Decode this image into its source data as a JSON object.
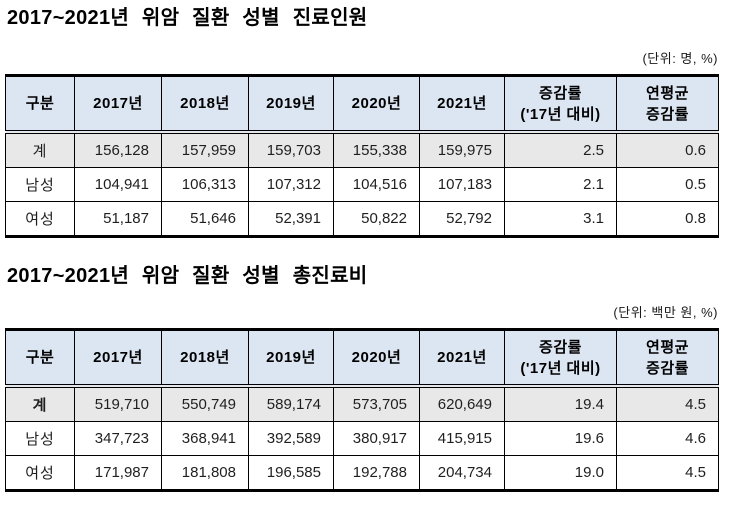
{
  "colors": {
    "header_bg": "#dce6f2",
    "total_row_bg": "#e8e8e8",
    "border": "#000000",
    "text": "#000000"
  },
  "tables": [
    {
      "title": "2017~2021년 위암 질환 성별 진료인원",
      "unit": "(단위: 명, %)",
      "headers": [
        "구분",
        "2017년",
        "2018년",
        "2019년",
        "2020년",
        "2021년",
        "증감률\n('17년 대비)",
        "연평균\n증감률"
      ],
      "rows": [
        {
          "label": "계",
          "total": true,
          "label_bold": false,
          "values": [
            "156,128",
            "157,959",
            "159,703",
            "155,338",
            "159,975",
            "2.5",
            "0.6"
          ]
        },
        {
          "label": "남성",
          "total": false,
          "label_bold": false,
          "values": [
            "104,941",
            "106,313",
            "107,312",
            "104,516",
            "107,183",
            "2.1",
            "0.5"
          ]
        },
        {
          "label": "여성",
          "total": false,
          "label_bold": false,
          "values": [
            "51,187",
            "51,646",
            "52,391",
            "50,822",
            "52,792",
            "3.1",
            "0.8"
          ]
        }
      ]
    },
    {
      "title": "2017~2021년 위암 질환 성별 총진료비",
      "unit": "(단위: 백만 원, %)",
      "headers": [
        "구분",
        "2017년",
        "2018년",
        "2019년",
        "2020년",
        "2021년",
        "증감률\n('17년 대비)",
        "연평균\n증감률"
      ],
      "rows": [
        {
          "label": "계",
          "total": true,
          "label_bold": true,
          "values": [
            "519,710",
            "550,749",
            "589,174",
            "573,705",
            "620,649",
            "19.4",
            "4.5"
          ]
        },
        {
          "label": "남성",
          "total": false,
          "label_bold": false,
          "values": [
            "347,723",
            "368,941",
            "392,589",
            "380,917",
            "415,915",
            "19.6",
            "4.6"
          ]
        },
        {
          "label": "여성",
          "total": false,
          "label_bold": false,
          "values": [
            "171,987",
            "181,808",
            "196,585",
            "192,788",
            "204,734",
            "19.0",
            "4.5"
          ]
        }
      ]
    }
  ]
}
